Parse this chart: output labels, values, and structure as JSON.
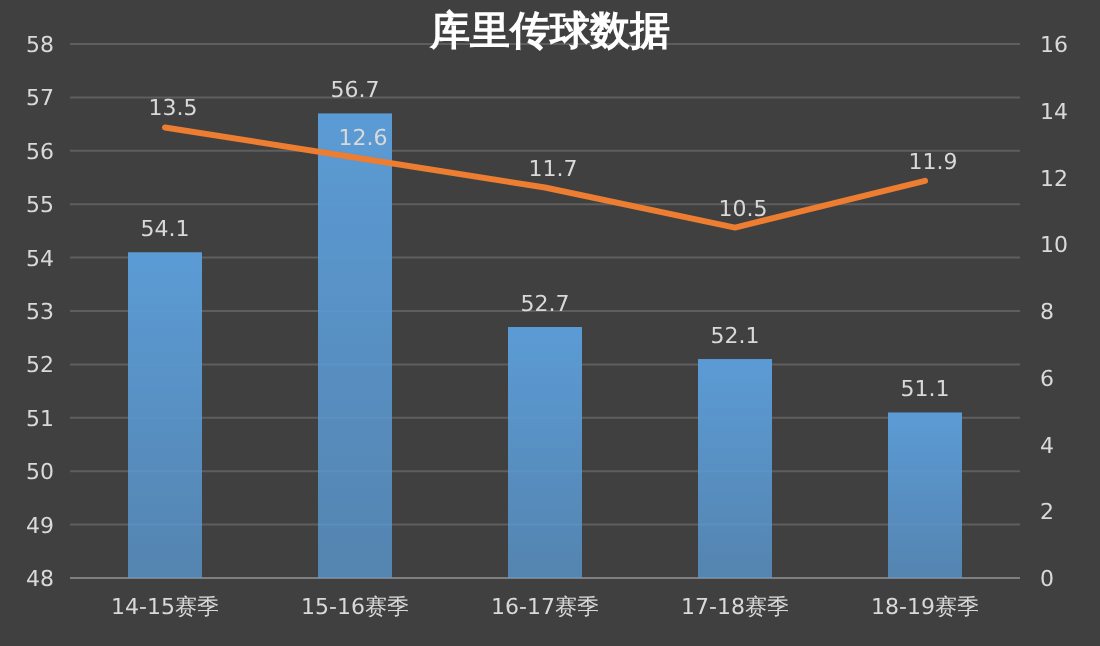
{
  "chart_data": {
    "type": "bar",
    "title": "库里传球数据",
    "categories": [
      "14-15赛季",
      "15-16赛季",
      "16-17赛季",
      "17-18赛季",
      "18-19赛季"
    ],
    "series": [
      {
        "color": "#5b9bd5",
        "values": [
          54.1,
          56.7,
          52.7,
          52.1,
          51.1
        ]
      },
      {
        "type": "line",
        "axis": "y2",
        "color": "#ed7d31",
        "values": [
          13.5,
          12.6,
          11.7,
          10.5,
          11.9
        ]
      }
    ],
    "ylim": [
      48,
      58
    ],
    "yticks": [
      48,
      49,
      50,
      51,
      52,
      53,
      54,
      55,
      56,
      57,
      58
    ],
    "y2lim": [
      0,
      16
    ],
    "y2ticks": [
      0,
      2,
      4,
      6,
      8,
      10,
      12,
      14,
      16
    ],
    "grid": "y",
    "data_labels": true
  }
}
